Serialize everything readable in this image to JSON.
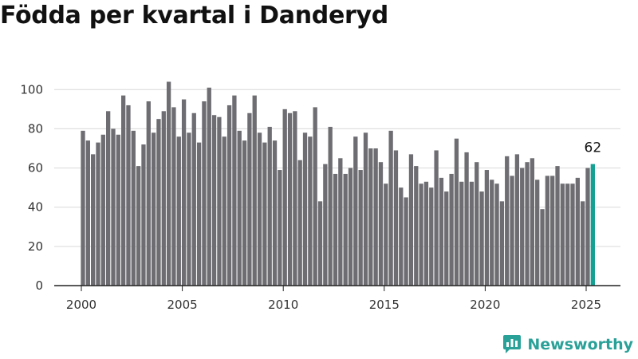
{
  "title": "Födda per kvartal i Danderyd",
  "brand": {
    "name": "Newsworthy",
    "icon": "newsworthy-logo-icon",
    "color": "#2aa198"
  },
  "colors": {
    "bar": "#6e6d72",
    "highlight": "#14a193",
    "grid": "#d9d9d9",
    "axis": "#222222"
  },
  "chart_data": {
    "type": "bar",
    "title": "Födda per kvartal i Danderyd",
    "xlabel": "",
    "ylabel": "",
    "x_start": "2000 Q1",
    "x_ticks": [
      "2000",
      "2005",
      "2010",
      "2015",
      "2020",
      "2025"
    ],
    "y_ticks": [
      0,
      20,
      40,
      60,
      80,
      100
    ],
    "ylim": [
      0,
      105
    ],
    "grid": true,
    "highlight_last": true,
    "last_value_label": "62",
    "values": [
      79,
      74,
      67,
      73,
      77,
      89,
      80,
      77,
      97,
      92,
      79,
      61,
      72,
      94,
      78,
      85,
      89,
      104,
      91,
      76,
      95,
      78,
      88,
      73,
      94,
      101,
      87,
      86,
      76,
      92,
      97,
      79,
      74,
      88,
      97,
      78,
      73,
      81,
      74,
      59,
      90,
      88,
      89,
      64,
      78,
      76,
      91,
      43,
      62,
      81,
      57,
      65,
      57,
      60,
      76,
      59,
      78,
      70,
      70,
      63,
      52,
      79,
      69,
      50,
      45,
      67,
      61,
      52,
      53,
      50,
      69,
      55,
      48,
      57,
      75,
      53,
      68,
      53,
      63,
      48,
      59,
      54,
      52,
      43,
      66,
      56,
      67,
      60,
      63,
      65,
      54,
      39,
      56,
      56,
      61,
      52,
      52,
      52,
      55,
      43,
      60,
      62
    ]
  }
}
